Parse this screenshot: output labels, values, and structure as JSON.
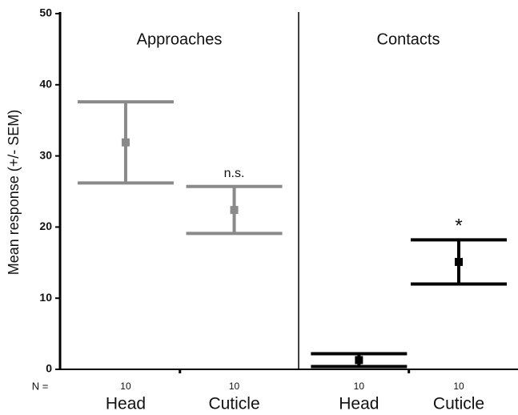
{
  "chart_data": {
    "type": "errorbar",
    "ylabel": "Mean response (+/- SEM)",
    "ylim": [
      0,
      50
    ],
    "yticks": [
      0,
      10,
      20,
      30,
      40,
      50
    ],
    "n_label": "N =",
    "panels": [
      {
        "title": "Approaches",
        "categories": [
          "Head",
          "Cuticle"
        ],
        "values": [
          31.9,
          22.4
        ],
        "errors": [
          5.7,
          3.3
        ],
        "n": [
          10,
          10
        ],
        "annotations": [
          null,
          "n.s."
        ],
        "color": "#8a8a8a"
      },
      {
        "title": "Contacts",
        "categories": [
          "Head",
          "Cuticle"
        ],
        "values": [
          1.3,
          15.1
        ],
        "errors": [
          0.9,
          3.1
        ],
        "n": [
          10,
          10
        ],
        "annotations": [
          null,
          "*"
        ],
        "color": "#000000"
      }
    ]
  }
}
